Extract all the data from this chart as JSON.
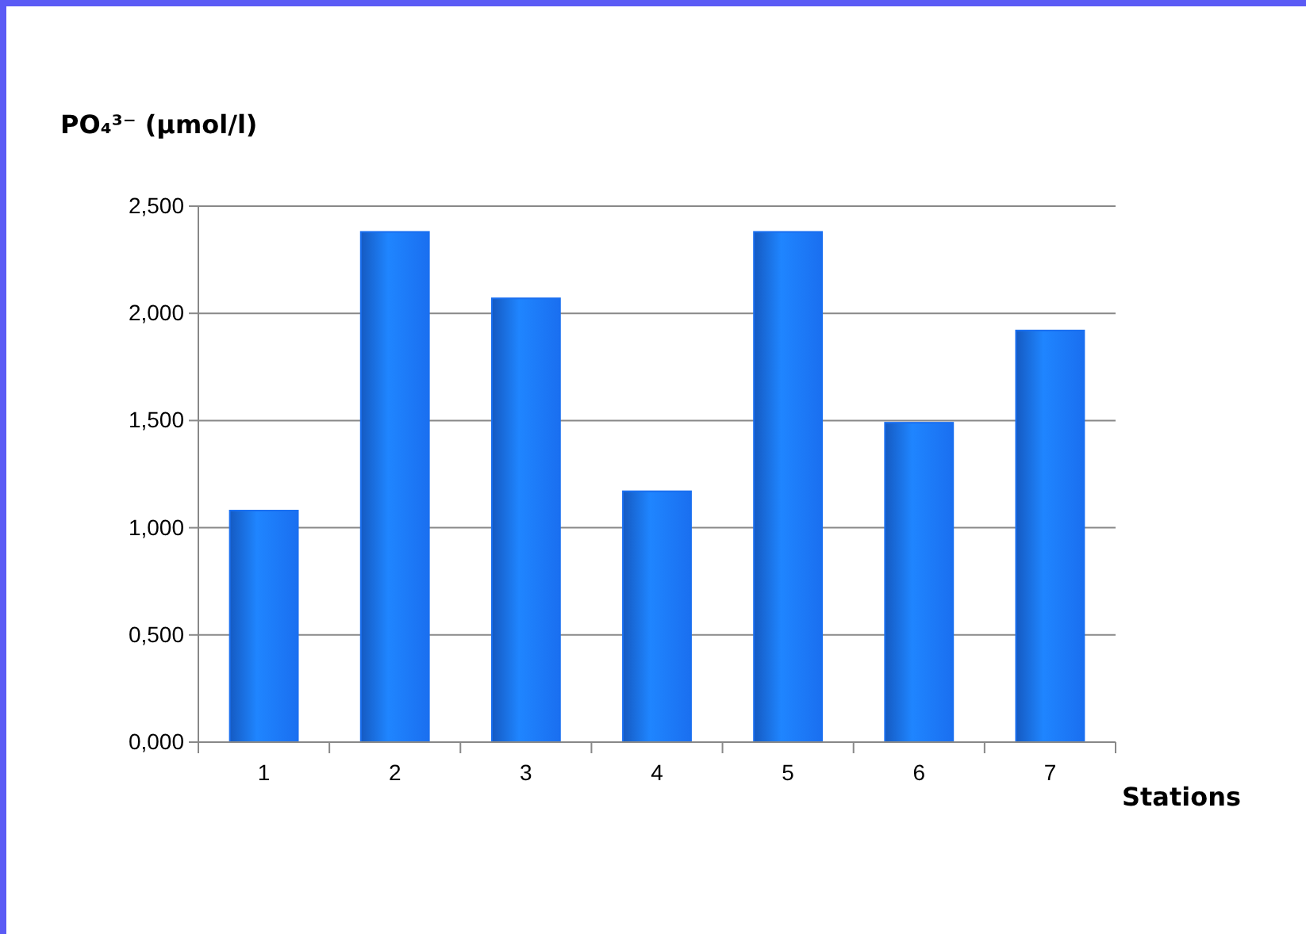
{
  "chart_data": {
    "type": "bar",
    "ylabel": "PO₄³⁻ (µmol/l)",
    "xlabel": "Stations",
    "categories": [
      "1",
      "2",
      "3",
      "4",
      "5",
      "6",
      "7"
    ],
    "values": [
      1.08,
      2.38,
      2.07,
      1.17,
      2.38,
      1.49,
      1.92
    ],
    "color": "#1a6ff0",
    "ylim": [
      0,
      2.5
    ],
    "yticks": [
      {
        "value": 0,
        "label": "0,000"
      },
      {
        "value": 0.5,
        "label": "0,500"
      },
      {
        "value": 1,
        "label": "1,000"
      },
      {
        "value": 1.5,
        "label": "1,500"
      },
      {
        "value": 2,
        "label": "2,000"
      },
      {
        "value": 2.5,
        "label": "2,500"
      }
    ],
    "grid": "y"
  }
}
